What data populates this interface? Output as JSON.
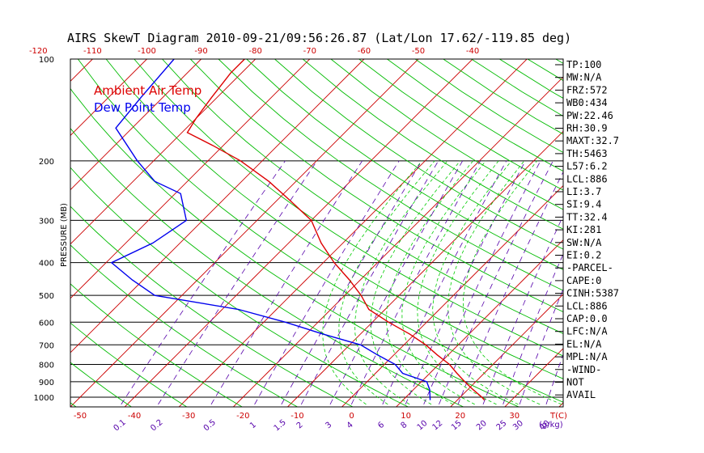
{
  "chart_data": {
    "type": "line",
    "title": "AIRS SkewT Diagram 2010-09-21/09:56:26.87 (Lat/Lon 17.62/-119.85 deg)",
    "ylabel": "PRESSURE (MB)",
    "y_scale": "log",
    "ylim": [
      1000,
      100
    ],
    "y_ticks": [
      100,
      200,
      300,
      400,
      500,
      600,
      700,
      800,
      900,
      1000
    ],
    "x_bottom_ticks": [
      -50,
      -40,
      -30,
      -20,
      -10,
      0,
      10,
      20,
      30
    ],
    "x_bottom_unit_label": "T(C)",
    "x_top_ticks": [
      -120,
      -110,
      -100,
      -90,
      -80,
      -70,
      -60,
      -50,
      -40
    ],
    "mixing_ratio_labels": [
      "0.1",
      "0.2",
      "0.5",
      "1",
      "1.5",
      "2",
      "3",
      "4",
      "6",
      "8",
      "10",
      "12",
      "15",
      "20",
      "25",
      "30",
      "40"
    ],
    "mixing_ratio_unit_label": "(g/kg)",
    "legend": [
      "Ambient Air Temp",
      "Dew Point Temp"
    ],
    "legend_placement": "top-left",
    "series": [
      {
        "name": "Ambient Air Temp",
        "color": "#dd0000",
        "points": [
          [
            100,
            -82
          ],
          [
            110,
            -82
          ],
          [
            130,
            -81
          ],
          [
            150,
            -80
          ],
          [
            165,
            -79
          ],
          [
            180,
            -72
          ],
          [
            200,
            -64
          ],
          [
            230,
            -55
          ],
          [
            260,
            -48
          ],
          [
            300,
            -40
          ],
          [
            350,
            -34
          ],
          [
            400,
            -28
          ],
          [
            450,
            -22
          ],
          [
            500,
            -17
          ],
          [
            550,
            -13
          ],
          [
            600,
            -7
          ],
          [
            650,
            -1
          ],
          [
            700,
            4
          ],
          [
            750,
            8
          ],
          [
            800,
            12
          ],
          [
            850,
            15
          ],
          [
            900,
            18
          ],
          [
            950,
            21
          ],
          [
            1000,
            24
          ],
          [
            1020,
            25
          ]
        ]
      },
      {
        "name": "Dew Point Temp",
        "color": "#0000ee",
        "points": [
          [
            100,
            -95
          ],
          [
            130,
            -94
          ],
          [
            160,
            -93
          ],
          [
            200,
            -83
          ],
          [
            230,
            -76
          ],
          [
            250,
            -69
          ],
          [
            300,
            -63
          ],
          [
            350,
            -65
          ],
          [
            400,
            -69
          ],
          [
            450,
            -62
          ],
          [
            500,
            -55
          ],
          [
            550,
            -37
          ],
          [
            600,
            -26
          ],
          [
            650,
            -17
          ],
          [
            700,
            -8
          ],
          [
            750,
            -3
          ],
          [
            800,
            2
          ],
          [
            850,
            5
          ],
          [
            900,
            11
          ],
          [
            950,
            13
          ],
          [
            1020,
            15
          ]
        ]
      }
    ],
    "grid": {
      "isobars": true,
      "skewed_isotherms_color": "#cc0000",
      "dry_adiabats_color": "#00bb00",
      "moist_adiabats_color": "#00cc00",
      "mixing_ratio_color": "#5500aa"
    }
  },
  "indices": [
    "TP:100",
    "MW:N/A",
    "FRZ:572",
    "WB0:434",
    "PW:22.46",
    "RH:30.9",
    "MAXT:32.7",
    "TH:5463",
    "L57:6.2",
    "LCL:886",
    "LI:3.7",
    "SI:9.4",
    "TT:32.4",
    "KI:281",
    "SW:N/A",
    "EI:0.2",
    "-PARCEL-",
    "CAPE:0",
    "CINH:5387",
    "LCL:886",
    "CAP:0.0",
    "LFC:N/A",
    "EL:N/A",
    "MPL:N/A",
    "-WIND-",
    "NOT",
    "AVAIL"
  ]
}
